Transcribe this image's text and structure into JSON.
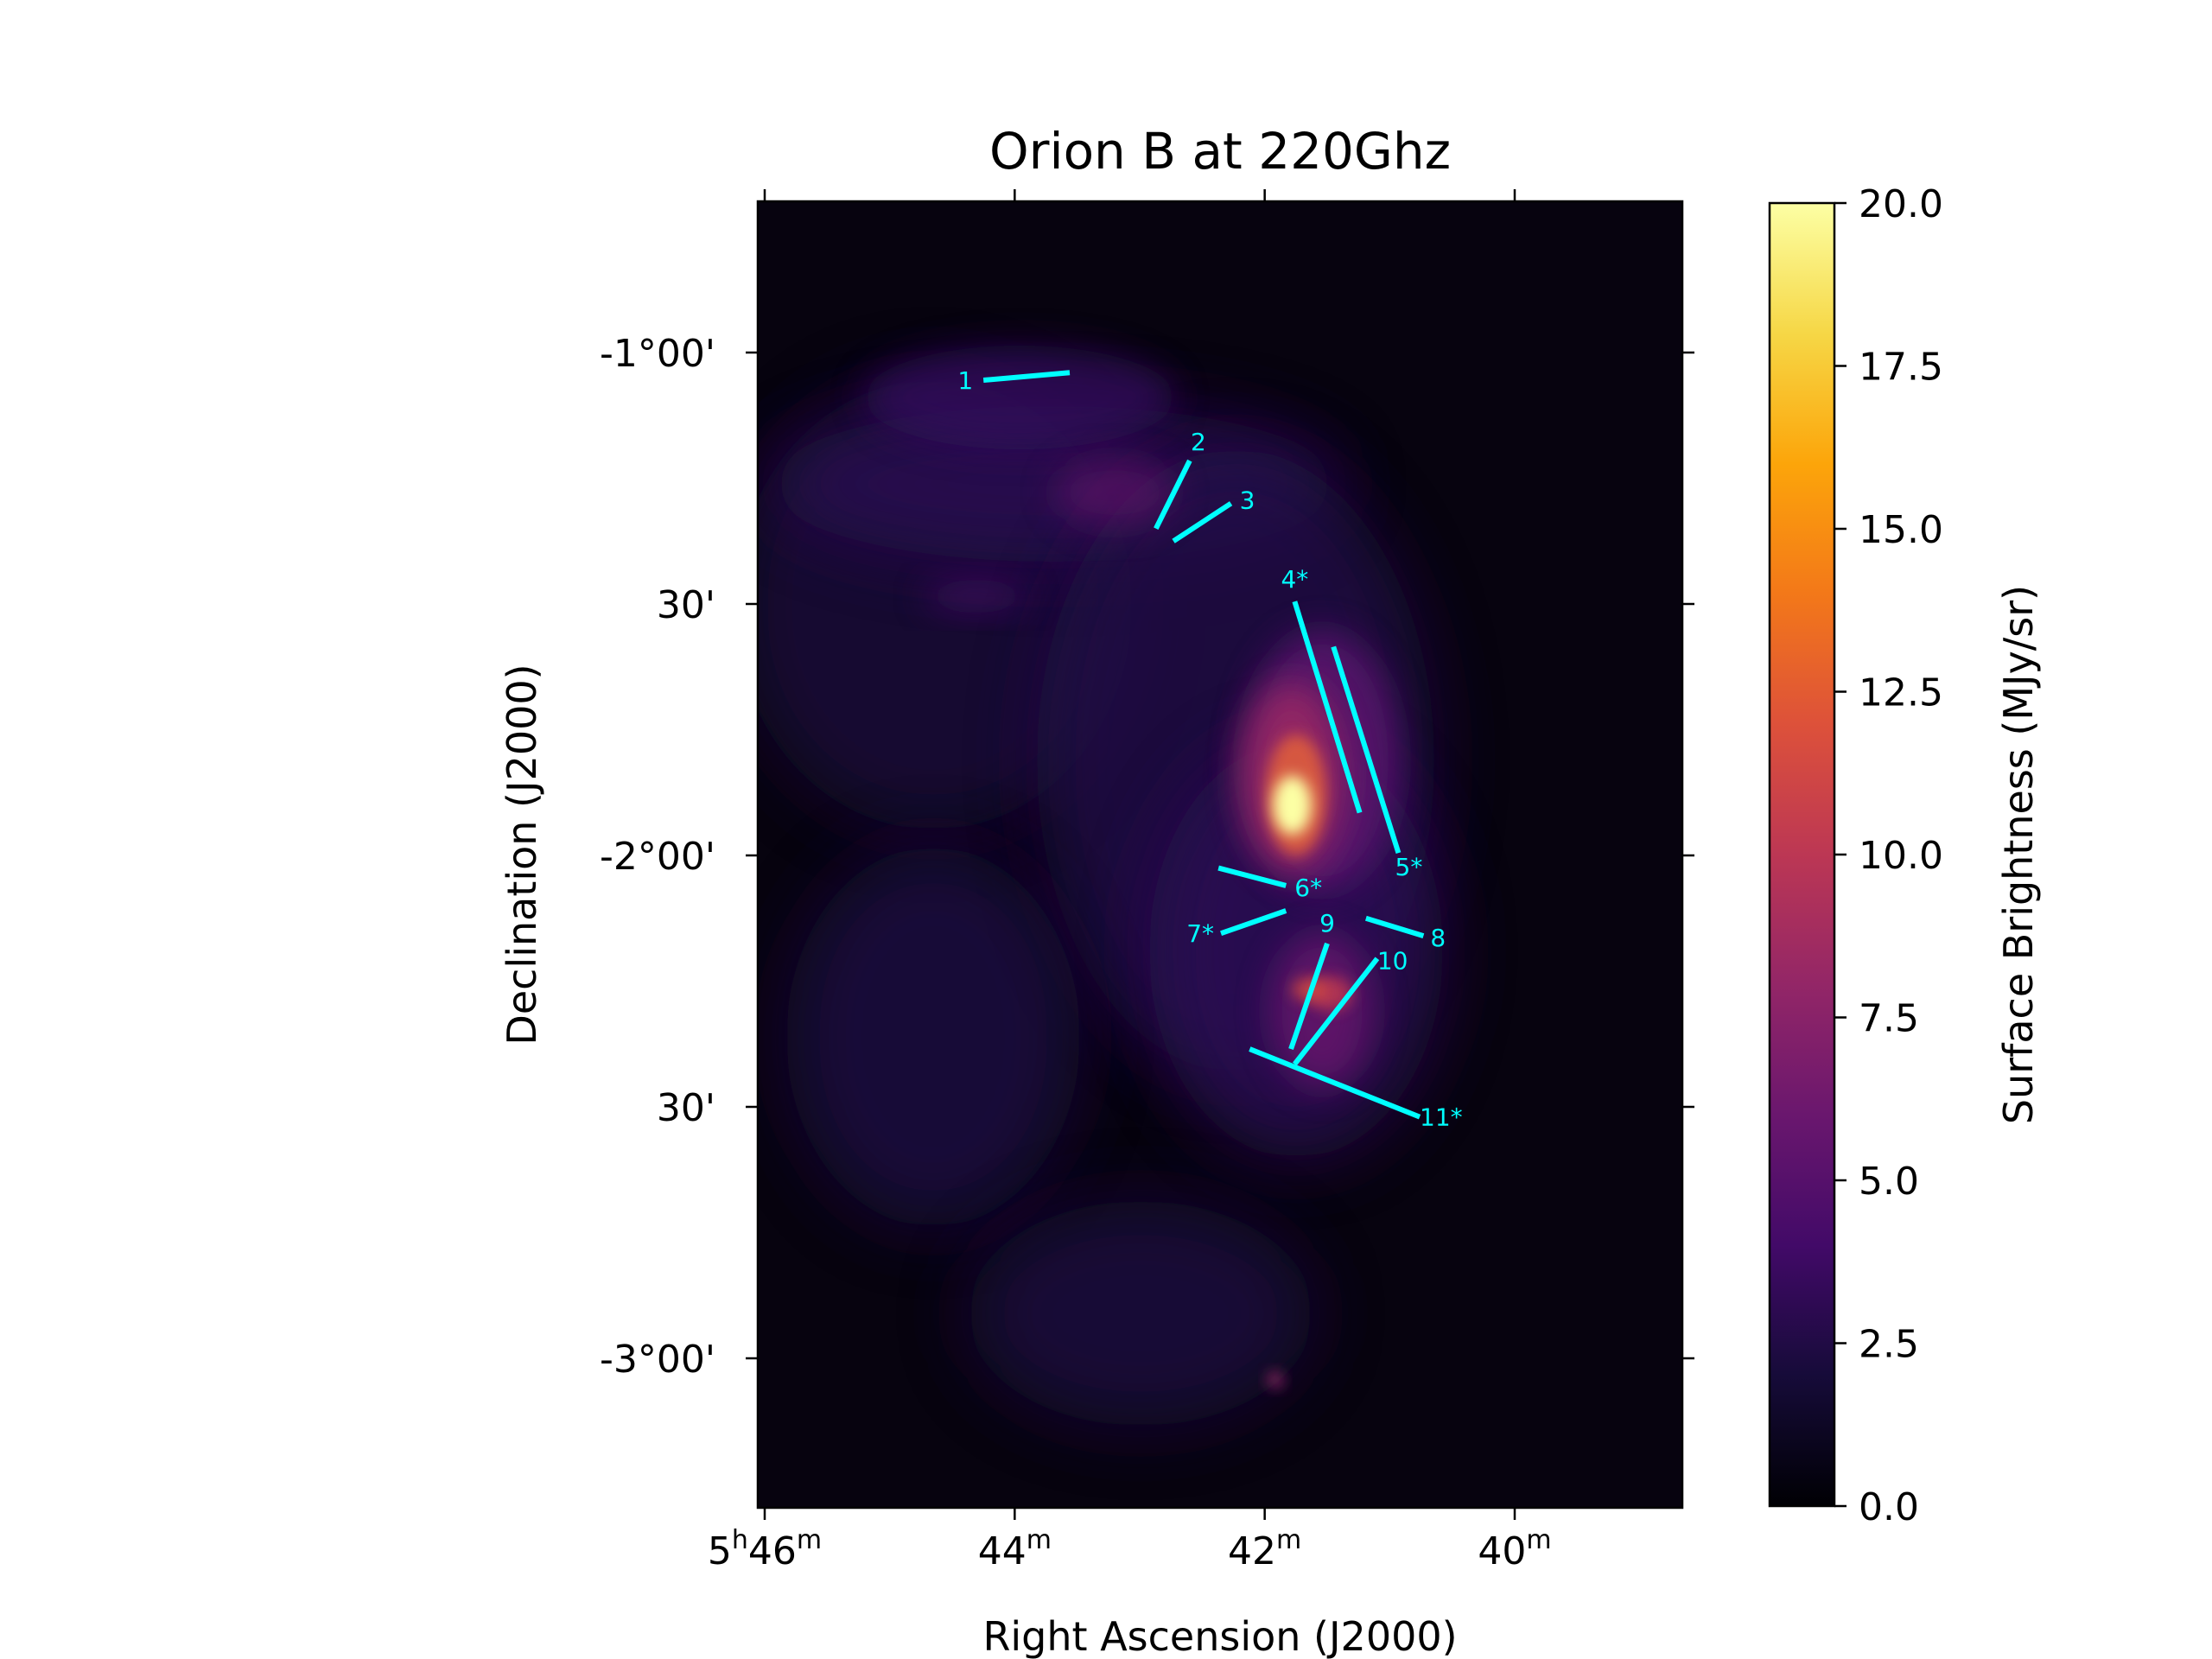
{
  "chart_data": {
    "type": "heatmap",
    "title": "Orion B at 220Ghz",
    "xlabel": "Right Ascension (J2000)",
    "ylabel": "Declination (J2000)",
    "colorbar_label": "Surface Brightness (MJy/sr)",
    "colormap": "inferno",
    "colorbar_range": [
      0.0,
      20.0
    ],
    "colorbar_ticks": [
      "0.0",
      "2.5",
      "5.0",
      "7.5",
      "10.0",
      "12.5",
      "15.0",
      "17.5",
      "20.0"
    ],
    "x_ticks": [
      {
        "value_min": 46,
        "label_base": "5",
        "label_sup1": "h",
        "label_mid": "46",
        "label_sup2": "m"
      },
      {
        "value_min": 44,
        "label_base": "",
        "label_sup1": "",
        "label_mid": "44",
        "label_sup2": "m"
      },
      {
        "value_min": 42,
        "label_base": "",
        "label_sup1": "",
        "label_mid": "42",
        "label_sup2": "m"
      },
      {
        "value_min": 40,
        "label_base": "",
        "label_sup1": "",
        "label_mid": "40",
        "label_sup2": "m"
      }
    ],
    "y_ticks": [
      {
        "value_deg": -1.0,
        "label": "-1°00'"
      },
      {
        "value_deg": -1.5,
        "label": "30'"
      },
      {
        "value_deg": -2.0,
        "label": "-2°00'"
      },
      {
        "value_deg": -2.5,
        "label": "30'"
      },
      {
        "value_deg": -3.0,
        "label": "-3°00'"
      }
    ],
    "ra_range_min": [
      46.06,
      38.72
    ],
    "dec_range_deg": [
      -0.7,
      -3.3
    ],
    "cuts": [
      {
        "label": "1",
        "ra1": 44.25,
        "dec1": -1.055,
        "ra2": 43.56,
        "dec2": -1.04
      },
      {
        "label": "2",
        "ra1": 42.6,
        "dec1": -1.215,
        "ra2": 42.87,
        "dec2": -1.35
      },
      {
        "label": "3",
        "ra1": 42.27,
        "dec1": -1.3,
        "ra2": 42.73,
        "dec2": -1.375
      },
      {
        "label": "4*",
        "ra1": 41.76,
        "dec1": -1.495,
        "ra2": 41.24,
        "dec2": -1.915
      },
      {
        "label": "5*",
        "ra1": 41.45,
        "dec1": -1.585,
        "ra2": 40.93,
        "dec2": -1.995
      },
      {
        "label": "6*",
        "ra1": 42.37,
        "dec1": -2.025,
        "ra2": 41.83,
        "dec2": -2.06
      },
      {
        "label": "7*",
        "ra1": 42.35,
        "dec1": -2.155,
        "ra2": 41.83,
        "dec2": -2.11
      },
      {
        "label": "8",
        "ra1": 41.19,
        "dec1": -2.125,
        "ra2": 40.73,
        "dec2": -2.16
      },
      {
        "label": "9",
        "ra1": 41.5,
        "dec1": -2.175,
        "ra2": 41.79,
        "dec2": -2.385
      },
      {
        "label": "10",
        "ra1": 41.1,
        "dec1": -2.205,
        "ra2": 41.76,
        "dec2": -2.415
      },
      {
        "label": "11*",
        "ra1": 42.12,
        "dec1": -2.385,
        "ra2": 40.76,
        "dec2": -2.52
      }
    ],
    "bright_peak": {
      "ra": 41.78,
      "dec": -1.9,
      "value": 20.0
    }
  }
}
